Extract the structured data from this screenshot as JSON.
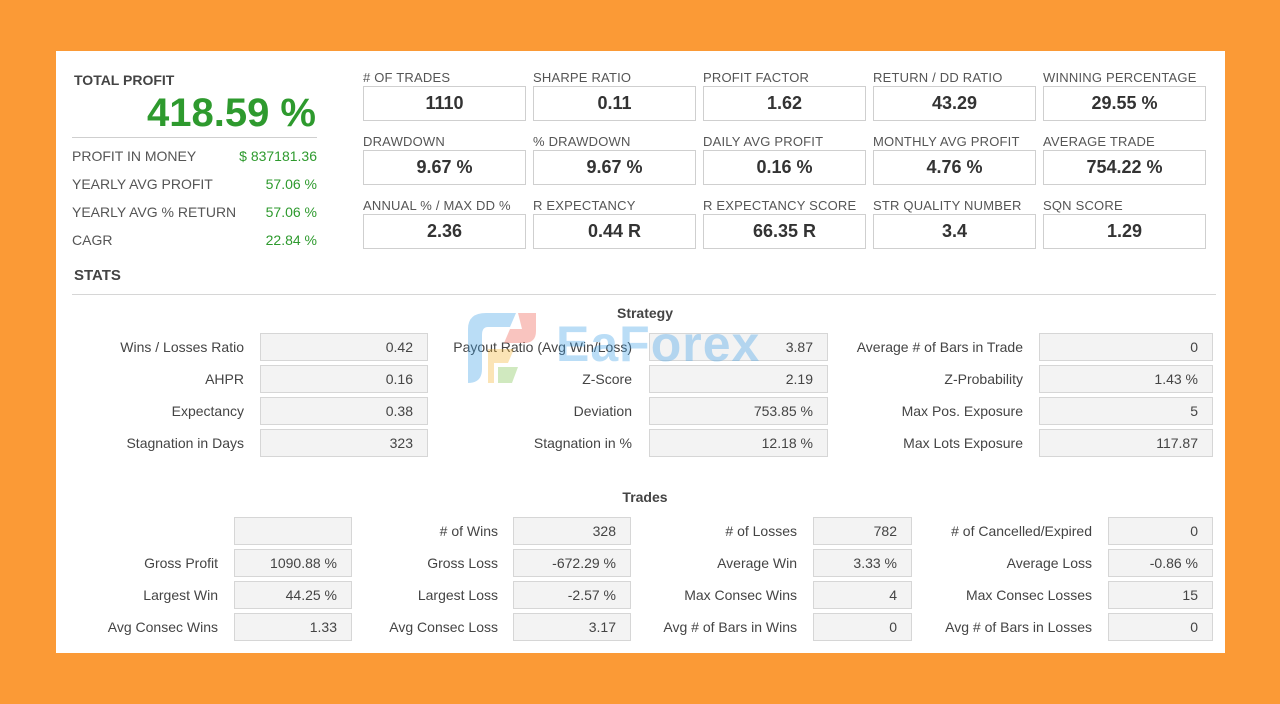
{
  "total_profit": {
    "title": "TOTAL PROFIT",
    "value": "418.59 %",
    "rows": [
      {
        "label": "PROFIT IN MONEY",
        "value": "$ 837181.36"
      },
      {
        "label": "YEARLY AVG PROFIT",
        "value": "57.06 %"
      },
      {
        "label": "YEARLY AVG % RETURN",
        "value": "57.06 %"
      },
      {
        "label": "CAGR",
        "value": "22.84 %"
      }
    ]
  },
  "kpis": [
    {
      "label": "# OF TRADES",
      "value": "1110"
    },
    {
      "label": "SHARPE RATIO",
      "value": "0.11"
    },
    {
      "label": "PROFIT FACTOR",
      "value": "1.62"
    },
    {
      "label": "RETURN / DD RATIO",
      "value": "43.29"
    },
    {
      "label": "WINNING PERCENTAGE",
      "value": "29.55 %"
    },
    {
      "label": "DRAWDOWN",
      "value": "9.67 %"
    },
    {
      "label": "% DRAWDOWN",
      "value": "9.67 %"
    },
    {
      "label": "DAILY AVG PROFIT",
      "value": "0.16 %"
    },
    {
      "label": "MONTHLY AVG PROFIT",
      "value": "4.76 %"
    },
    {
      "label": "AVERAGE TRADE",
      "value": "754.22 %"
    },
    {
      "label": "ANNUAL % / MAX DD %",
      "value": "2.36"
    },
    {
      "label": "R EXPECTANCY",
      "value": "0.44 R"
    },
    {
      "label": "R EXPECTANCY SCORE",
      "value": "66.35 R"
    },
    {
      "label": "STR QUALITY NUMBER",
      "value": "3.4"
    },
    {
      "label": "SQN SCORE",
      "value": "1.29"
    }
  ],
  "stats": {
    "title": "STATS",
    "strategy": {
      "title": "Strategy",
      "rows": [
        [
          {
            "label": "Wins / Losses Ratio",
            "value": "0.42"
          },
          {
            "label": "Payout Ratio (Avg Win/Loss)",
            "value": "3.87"
          },
          {
            "label": "Average # of Bars in Trade",
            "value": "0"
          }
        ],
        [
          {
            "label": "AHPR",
            "value": "0.16"
          },
          {
            "label": "Z-Score",
            "value": "2.19"
          },
          {
            "label": "Z-Probability",
            "value": "1.43 %"
          }
        ],
        [
          {
            "label": "Expectancy",
            "value": "0.38"
          },
          {
            "label": "Deviation",
            "value": "753.85 %"
          },
          {
            "label": "Max Pos. Exposure",
            "value": "5"
          }
        ],
        [
          {
            "label": "Stagnation in Days",
            "value": "323"
          },
          {
            "label": "Stagnation in %",
            "value": "12.18 %"
          },
          {
            "label": "Max Lots Exposure",
            "value": "117.87"
          }
        ]
      ]
    },
    "trades": {
      "title": "Trades",
      "rows": [
        [
          {
            "label": "",
            "value": ""
          },
          {
            "label": "# of Wins",
            "value": "328"
          },
          {
            "label": "# of Losses",
            "value": "782"
          },
          {
            "label": "# of Cancelled/Expired",
            "value": "0"
          }
        ],
        [
          {
            "label": "Gross Profit",
            "value": "1090.88 %"
          },
          {
            "label": "Gross Loss",
            "value": "-672.29 %"
          },
          {
            "label": "Average Win",
            "value": "3.33 %"
          },
          {
            "label": "Average Loss",
            "value": "-0.86 %"
          }
        ],
        [
          {
            "label": "Largest Win",
            "value": "44.25 %"
          },
          {
            "label": "Largest Loss",
            "value": "-2.57 %"
          },
          {
            "label": "Max Consec Wins",
            "value": "4"
          },
          {
            "label": "Max Consec Losses",
            "value": "15"
          }
        ],
        [
          {
            "label": "Avg Consec Wins",
            "value": "1.33"
          },
          {
            "label": "Avg Consec Loss",
            "value": "3.17"
          },
          {
            "label": "Avg # of Bars in Wins",
            "value": "0"
          },
          {
            "label": "Avg # of Bars in Losses",
            "value": "0"
          }
        ]
      ]
    }
  },
  "watermark": {
    "text": "EaForex",
    "icon": "eaforex-logo-icon"
  },
  "colors": {
    "background": "#fb9a36",
    "positive": "#2e9a2e",
    "panel": "#ffffff"
  }
}
